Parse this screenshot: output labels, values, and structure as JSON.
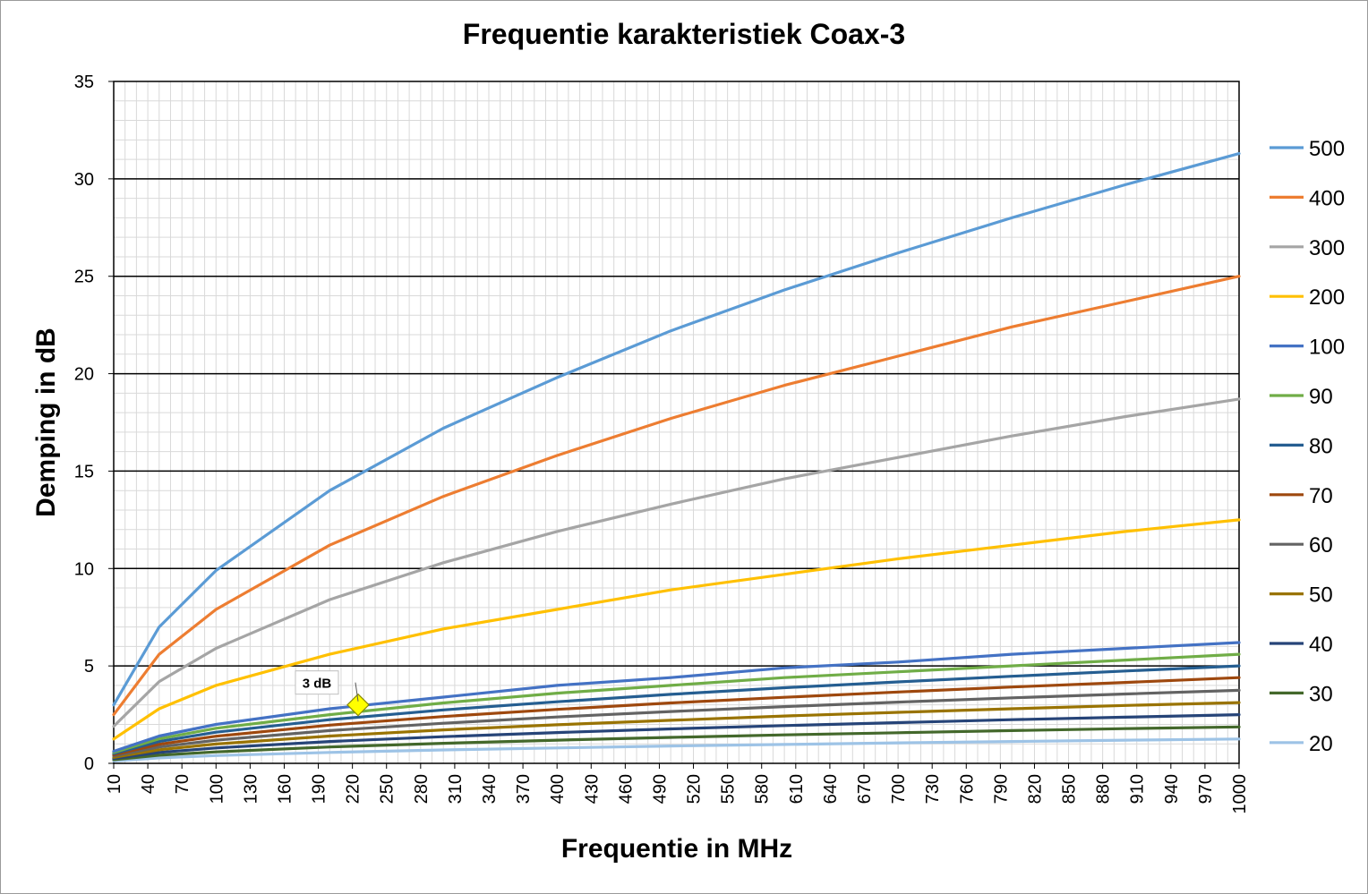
{
  "chart_data": {
    "type": "line",
    "title": "Frequentie karakteristiek Coax-3",
    "xlabel": "Frequentie in MHz",
    "ylabel": "Demping in dB",
    "xlim": [
      10,
      1000
    ],
    "ylim": [
      0,
      35
    ],
    "y_ticks": [
      0,
      5,
      10,
      15,
      20,
      25,
      30,
      35
    ],
    "x_tick_labels": [
      "10",
      "40",
      "70",
      "100",
      "130",
      "160",
      "190",
      "220",
      "250",
      "280",
      "310",
      "340",
      "370",
      "400",
      "430",
      "460",
      "490",
      "520",
      "550",
      "580",
      "610",
      "640",
      "670",
      "700",
      "730",
      "760",
      "790",
      "820",
      "850",
      "880",
      "910",
      "940",
      "970",
      "1000"
    ],
    "x": [
      10,
      50,
      100,
      200,
      300,
      400,
      500,
      600,
      700,
      800,
      900,
      1000
    ],
    "series": [
      {
        "name": "500",
        "color": "#5b9bd5",
        "values": [
          3.0,
          7.0,
          9.9,
          14.0,
          17.2,
          19.8,
          22.2,
          24.3,
          26.2,
          28.0,
          29.7,
          31.3
        ]
      },
      {
        "name": "400",
        "color": "#ed7d31",
        "values": [
          2.5,
          5.6,
          7.9,
          11.2,
          13.7,
          15.8,
          17.7,
          19.4,
          20.9,
          22.4,
          23.7,
          25.0
        ]
      },
      {
        "name": "300",
        "color": "#a5a5a5",
        "values": [
          1.9,
          4.2,
          5.9,
          8.4,
          10.3,
          11.9,
          13.3,
          14.6,
          15.7,
          16.8,
          17.8,
          18.7
        ]
      },
      {
        "name": "200",
        "color": "#ffc000",
        "values": [
          1.25,
          2.8,
          4.0,
          5.6,
          6.9,
          7.9,
          8.9,
          9.7,
          10.5,
          11.2,
          11.9,
          12.5
        ]
      },
      {
        "name": "100",
        "color": "#4472c4",
        "values": [
          0.62,
          1.4,
          2.0,
          2.8,
          3.4,
          4.0,
          4.4,
          4.9,
          5.2,
          5.6,
          5.9,
          6.2
        ]
      },
      {
        "name": "90",
        "color": "#70ad47",
        "values": [
          0.56,
          1.26,
          1.8,
          2.5,
          3.1,
          3.6,
          4.0,
          4.4,
          4.7,
          5.0,
          5.3,
          5.6
        ]
      },
      {
        "name": "80",
        "color": "#255e91",
        "values": [
          0.5,
          1.12,
          1.6,
          2.24,
          2.74,
          3.16,
          3.54,
          3.88,
          4.18,
          4.47,
          4.74,
          5.0
        ]
      },
      {
        "name": "70",
        "color": "#9e480e",
        "values": [
          0.44,
          0.98,
          1.39,
          1.96,
          2.4,
          2.77,
          3.1,
          3.39,
          3.66,
          3.92,
          4.15,
          4.4
        ]
      },
      {
        "name": "60",
        "color": "#636363",
        "values": [
          0.38,
          0.84,
          1.19,
          1.68,
          2.06,
          2.38,
          2.66,
          2.91,
          3.14,
          3.36,
          3.56,
          3.75
        ]
      },
      {
        "name": "50",
        "color": "#997300",
        "values": [
          0.31,
          0.7,
          0.99,
          1.4,
          1.72,
          1.98,
          2.21,
          2.43,
          2.62,
          2.8,
          2.97,
          3.12
        ]
      },
      {
        "name": "40",
        "color": "#264478",
        "values": [
          0.25,
          0.56,
          0.79,
          1.12,
          1.37,
          1.58,
          1.77,
          1.94,
          2.09,
          2.24,
          2.37,
          2.5
        ]
      },
      {
        "name": "30",
        "color": "#43682b",
        "values": [
          0.19,
          0.42,
          0.59,
          0.84,
          1.03,
          1.19,
          1.33,
          1.46,
          1.57,
          1.68,
          1.78,
          1.87
        ]
      },
      {
        "name": "20",
        "color": "#9dc3e6",
        "values": [
          0.12,
          0.28,
          0.4,
          0.56,
          0.69,
          0.79,
          0.89,
          0.97,
          1.05,
          1.12,
          1.19,
          1.25
        ]
      }
    ],
    "annotation": {
      "text": "3 dB",
      "x": 225,
      "y": 3.0,
      "marker_color": "#ffff00"
    },
    "legend_position": "right",
    "grid": true
  }
}
